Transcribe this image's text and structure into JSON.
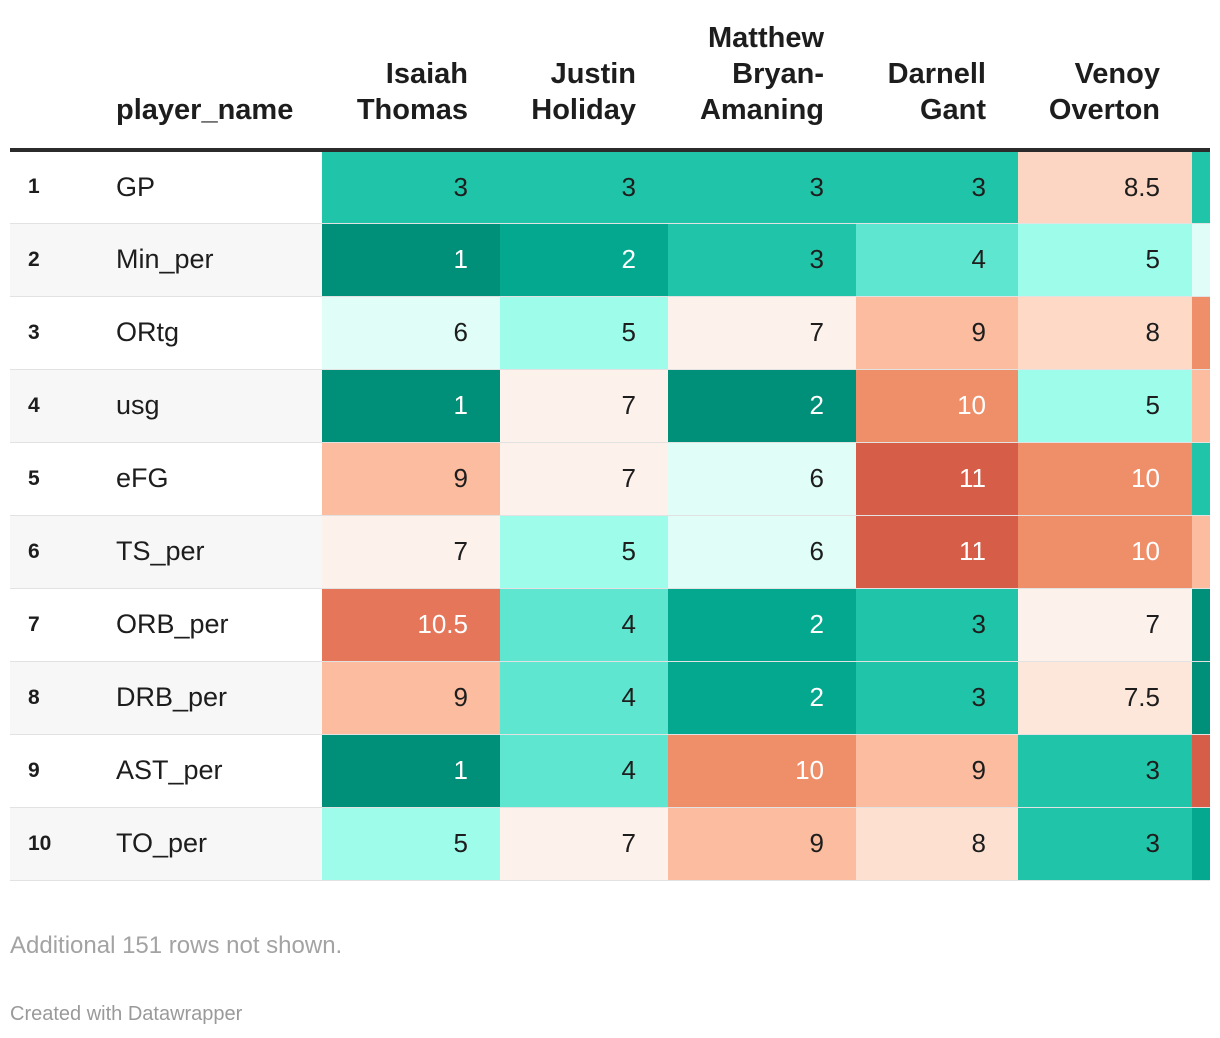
{
  "chart_data": {
    "type": "table",
    "title": "",
    "columns": [
      "",
      "player_name",
      "Isaiah Thomas",
      "Justin Holiday",
      "Matthew Bryan-Amaning",
      "Darnell Gant",
      "Venoy Overton",
      ""
    ],
    "header_lines": [
      [
        ""
      ],
      [
        "player_name"
      ],
      [
        "Isaiah",
        "Thomas"
      ],
      [
        "Justin",
        "Holiday"
      ],
      [
        "Matthew",
        "Bryan-",
        "Amaning"
      ],
      [
        "Darnell",
        "Gant"
      ],
      [
        "Venoy",
        "Overton"
      ],
      [
        ""
      ]
    ],
    "rows": [
      {
        "rank": "1",
        "name": "GP",
        "values": [
          "3",
          "3",
          "3",
          "3",
          "8.5"
        ],
        "colors": [
          "#20c4a8",
          "#20c4a8",
          "#20c4a8",
          "#20c4a8",
          "#fcd6c2",
          "#20c4a8"
        ]
      },
      {
        "rank": "2",
        "name": "Min_per",
        "values": [
          "1",
          "2",
          "3",
          "4",
          "5"
        ],
        "colors": [
          "#008f78",
          "#03a88e",
          "#20c4a8",
          "#5ee6d0",
          "#9dfcea",
          "#e0fdf8"
        ]
      },
      {
        "rank": "3",
        "name": "ORtg",
        "values": [
          "6",
          "5",
          "7",
          "9",
          "8"
        ],
        "colors": [
          "#e0fdf8",
          "#9dfcea",
          "#fdf1ec",
          "#fbbc9f",
          "#fdd9c6",
          "#ef8f6a"
        ]
      },
      {
        "rank": "4",
        "name": "usg",
        "values": [
          "1",
          "7",
          "2",
          "10",
          "5"
        ],
        "colors": [
          "#008f78",
          "#fdf1ec",
          "#008f78",
          "#ef8f6a",
          "#9dfcea",
          "#fbbc9f"
        ]
      },
      {
        "rank": "5",
        "name": "eFG",
        "values": [
          "9",
          "7",
          "6",
          "11",
          "10"
        ],
        "colors": [
          "#fbbc9f",
          "#fdf1ec",
          "#e0fdf8",
          "#d65d47",
          "#ef8f6a",
          "#20c4a8"
        ]
      },
      {
        "rank": "6",
        "name": "TS_per",
        "values": [
          "7",
          "5",
          "6",
          "11",
          "10"
        ],
        "colors": [
          "#fdf1ec",
          "#9dfcea",
          "#e0fdf8",
          "#d65d47",
          "#ef8f6a",
          "#fbbc9f"
        ]
      },
      {
        "rank": "7",
        "name": "ORB_per",
        "values": [
          "10.5",
          "4",
          "2",
          "3",
          "7"
        ],
        "colors": [
          "#e6765a",
          "#5ee6d0",
          "#03a88e",
          "#20c4a8",
          "#fdf1ec",
          "#008f78"
        ]
      },
      {
        "rank": "8",
        "name": "DRB_per",
        "values": [
          "9",
          "4",
          "2",
          "3",
          "7.5"
        ],
        "colors": [
          "#fbbc9f",
          "#5ee6d0",
          "#03a88e",
          "#20c4a8",
          "#fde6da",
          "#008f78"
        ]
      },
      {
        "rank": "9",
        "name": "AST_per",
        "values": [
          "1",
          "4",
          "10",
          "9",
          "3"
        ],
        "colors": [
          "#008f78",
          "#5ee6d0",
          "#ef8f6a",
          "#fbbc9f",
          "#20c4a8",
          "#d65d47"
        ]
      },
      {
        "rank": "10",
        "name": "TO_per",
        "values": [
          "5",
          "7",
          "9",
          "8",
          "3"
        ],
        "colors": [
          "#9dfcea",
          "#fdf1ec",
          "#fbbc9f",
          "#fde0d0",
          "#20c4a8",
          "#03a88e"
        ]
      }
    ],
    "light_text_colors": [
      "#008f78",
      "#03a88e",
      "#d65d47",
      "#e6765a",
      "#ef8f6a"
    ]
  },
  "footer": {
    "note": "Additional 151 rows not shown.",
    "credit": "Created with Datawrapper"
  }
}
